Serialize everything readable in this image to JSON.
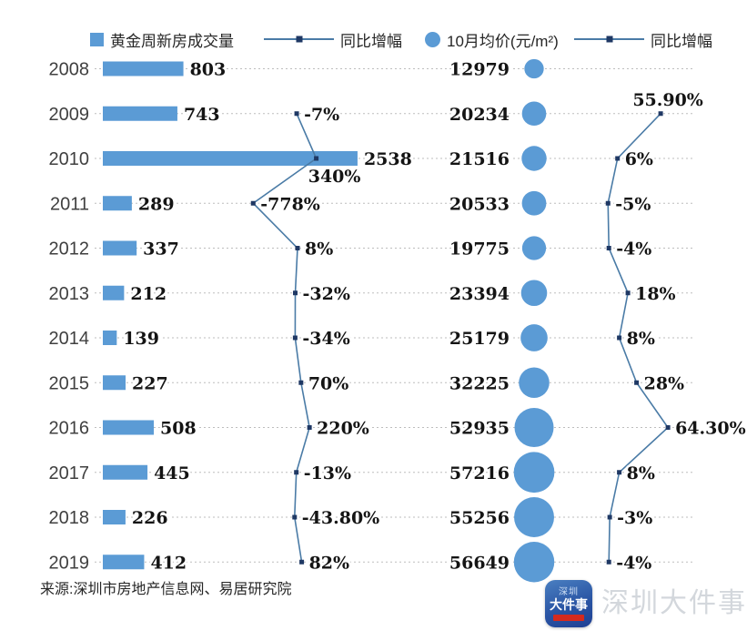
{
  "legend": [
    {
      "label": "黄金周新房成交量",
      "swatch": "square"
    },
    {
      "label": "同比增幅",
      "swatch": "line"
    },
    {
      "label": "10月均价(元/m²)",
      "swatch": "circle"
    },
    {
      "label": "同比增幅",
      "swatch": "line"
    }
  ],
  "source": "来源:深圳市房地产信息网、易居研究院",
  "watermark": {
    "logo_line1": "深圳",
    "logo_line2": "大件事",
    "text": "深圳大件事"
  },
  "colors": {
    "accent": "#5B9BD5",
    "line": "#4a7ba6",
    "marker": "#1f3864",
    "grid": "#bdbdbd",
    "text": "#141414"
  },
  "chart_data": {
    "type": "combo (bar + line + bubble + line)",
    "title": "",
    "categories": [
      "2008",
      "2009",
      "2010",
      "2011",
      "2012",
      "2013",
      "2014",
      "2015",
      "2016",
      "2017",
      "2018",
      "2019"
    ],
    "legend_position": "top",
    "grid": "dotted-horizontal",
    "series": [
      {
        "name": "黄金周新房成交量",
        "type": "bar",
        "values": [
          803,
          743,
          2538,
          289,
          337,
          212,
          139,
          227,
          508,
          445,
          226,
          412
        ]
      },
      {
        "name": "同比增幅",
        "type": "line",
        "values": [
          null,
          -7,
          340,
          -778,
          8,
          -32,
          -34,
          70,
          220,
          -13,
          -43.8,
          82
        ],
        "labels": [
          "",
          "-7%",
          "340%",
          "-778%",
          "8%",
          "-32%",
          "-34%",
          "70%",
          "220%",
          "-13%",
          "-43.80%",
          "82%"
        ],
        "label_pos": [
          "",
          "right",
          "below",
          "right",
          "right",
          "right",
          "right",
          "right",
          "right",
          "right",
          "right",
          "right"
        ]
      },
      {
        "name": "10月均价(元/m²)",
        "type": "bubble",
        "values": [
          12979,
          20234,
          21516,
          20533,
          19775,
          23394,
          25179,
          32225,
          52935,
          57216,
          55256,
          56649
        ]
      },
      {
        "name": "同比增幅",
        "type": "line",
        "values": [
          null,
          55.9,
          6,
          -5,
          -4,
          18,
          8,
          28,
          64.3,
          8,
          -3,
          -4
        ],
        "labels": [
          "",
          "55.90%",
          "6%",
          "-5%",
          "-4%",
          "18%",
          "8%",
          "28%",
          "64.30%",
          "8%",
          "-3%",
          "-4%"
        ],
        "label_pos": [
          "",
          "above",
          "right",
          "right",
          "right",
          "right",
          "right",
          "right",
          "right",
          "right",
          "right",
          "right"
        ]
      }
    ]
  }
}
